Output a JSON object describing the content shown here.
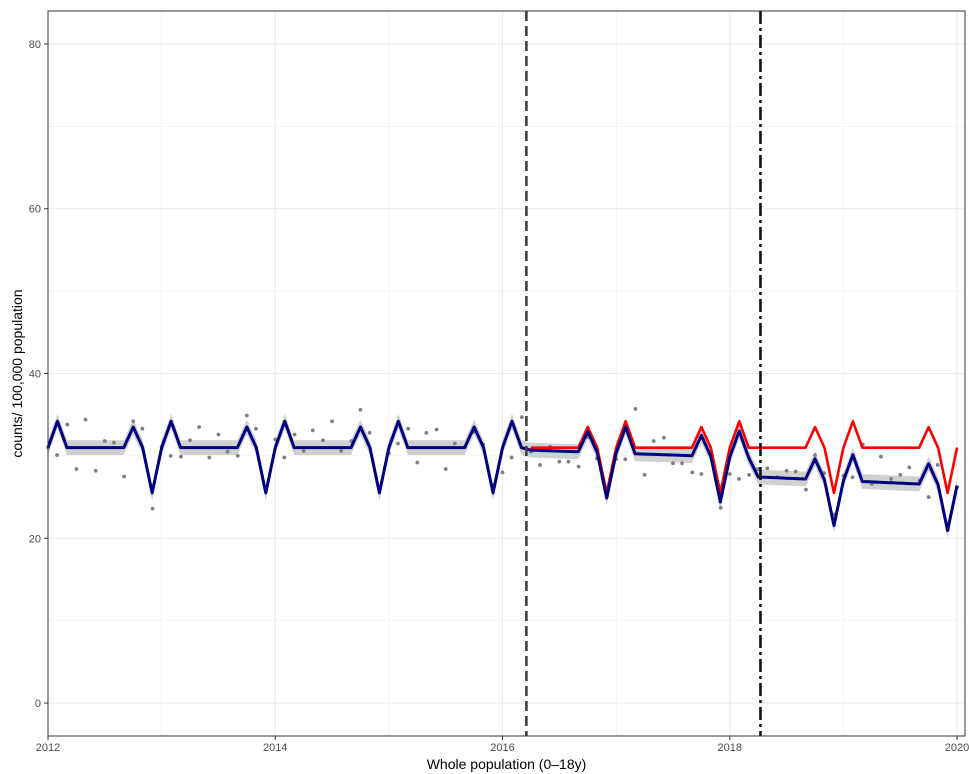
{
  "chart_data": {
    "type": "line",
    "title": "",
    "xlabel": "Whole population (0–18y)",
    "ylabel": "counts/ 100,000 population",
    "xlim": [
      2012.0,
      2020.07
    ],
    "ylim": [
      -4.0,
      84.0
    ],
    "x_ticks": [
      2012,
      2014,
      2016,
      2018,
      2020
    ],
    "x_tick_labels": [
      "2012",
      "2014",
      "2016",
      "2018",
      "2020"
    ],
    "y_ticks": [
      0,
      20,
      40,
      60,
      80
    ],
    "y_tick_labels": [
      "0",
      "20",
      "40",
      "60",
      "80"
    ],
    "grid": true,
    "legend": "none",
    "vlines": [
      {
        "x": 2016.21,
        "style": "dashed",
        "color": "#404040"
      },
      {
        "x": 2018.27,
        "style": "dashdot",
        "color": "#111111"
      }
    ],
    "colors": {
      "fitted": "#000080",
      "counterfactual": "#ff0000",
      "observed": "#808080",
      "band": "#c8c8c8"
    },
    "months": 97,
    "seasonal_pattern": [
      31.0,
      34.2,
      31.0,
      31.0,
      31.0,
      31.0,
      31.0,
      31.0,
      31.0,
      33.5,
      31.0,
      25.5
    ],
    "fitted": {
      "pre": {
        "base": 0.0,
        "slope": 0.0
      },
      "post1": {
        "start": 51,
        "drop": -0.3,
        "slope": -0.04
      },
      "post2": {
        "start": 75,
        "drop": -2.3,
        "slope": -0.01
      }
    },
    "band_halfwidth": 0.9,
    "observed_points": [
      [
        2012.0,
        31.0
      ],
      [
        2012.08,
        30.1
      ],
      [
        2012.17,
        33.8
      ],
      [
        2012.25,
        28.4
      ],
      [
        2012.33,
        34.4
      ],
      [
        2012.42,
        28.2
      ],
      [
        2012.5,
        31.8
      ],
      [
        2012.58,
        31.6
      ],
      [
        2012.67,
        27.5
      ],
      [
        2012.75,
        34.2
      ],
      [
        2012.83,
        33.3
      ],
      [
        2012.92,
        23.6
      ],
      [
        2013.0,
        31.1
      ],
      [
        2013.08,
        30.0
      ],
      [
        2013.17,
        29.9
      ],
      [
        2013.25,
        31.9
      ],
      [
        2013.33,
        33.5
      ],
      [
        2013.42,
        29.8
      ],
      [
        2013.5,
        32.6
      ],
      [
        2013.58,
        30.5
      ],
      [
        2013.67,
        30.0
      ],
      [
        2013.75,
        34.9
      ],
      [
        2013.83,
        33.3
      ],
      [
        2013.92,
        26.3
      ],
      [
        2014.0,
        32.0
      ],
      [
        2014.08,
        29.8
      ],
      [
        2014.17,
        32.6
      ],
      [
        2014.25,
        30.6
      ],
      [
        2014.33,
        33.1
      ],
      [
        2014.42,
        31.9
      ],
      [
        2014.5,
        34.2
      ],
      [
        2014.58,
        30.6
      ],
      [
        2014.67,
        31.8
      ],
      [
        2014.75,
        35.6
      ],
      [
        2014.83,
        32.8
      ],
      [
        2014.92,
        26.1
      ],
      [
        2015.0,
        30.3
      ],
      [
        2015.08,
        31.5
      ],
      [
        2015.17,
        33.3
      ],
      [
        2015.25,
        29.2
      ],
      [
        2015.33,
        32.8
      ],
      [
        2015.42,
        33.2
      ],
      [
        2015.5,
        28.4
      ],
      [
        2015.58,
        31.5
      ],
      [
        2015.67,
        31.1
      ],
      [
        2015.75,
        32.9
      ],
      [
        2015.83,
        31.4
      ],
      [
        2015.92,
        26.5
      ],
      [
        2016.0,
        28.0
      ],
      [
        2016.08,
        29.8
      ],
      [
        2016.17,
        34.7
      ],
      [
        2016.25,
        30.5
      ],
      [
        2016.33,
        28.9
      ],
      [
        2016.42,
        31.1
      ],
      [
        2016.5,
        29.3
      ],
      [
        2016.58,
        29.3
      ],
      [
        2016.67,
        28.7
      ],
      [
        2016.75,
        32.3
      ],
      [
        2016.83,
        29.7
      ],
      [
        2016.92,
        25.1
      ],
      [
        2017.0,
        29.6
      ],
      [
        2017.08,
        29.6
      ],
      [
        2017.17,
        35.7
      ],
      [
        2017.25,
        27.7
      ],
      [
        2017.33,
        31.8
      ],
      [
        2017.42,
        32.2
      ],
      [
        2017.5,
        29.1
      ],
      [
        2017.58,
        29.1
      ],
      [
        2017.67,
        28.0
      ],
      [
        2017.75,
        27.8
      ],
      [
        2017.83,
        30.4
      ],
      [
        2017.92,
        23.7
      ],
      [
        2018.0,
        27.8
      ],
      [
        2018.08,
        27.2
      ],
      [
        2018.17,
        27.7
      ],
      [
        2018.25,
        28.4
      ],
      [
        2018.33,
        28.5
      ],
      [
        2018.42,
        27.4
      ],
      [
        2018.5,
        28.2
      ],
      [
        2018.58,
        28.1
      ],
      [
        2018.67,
        25.9
      ],
      [
        2018.75,
        30.1
      ],
      [
        2018.83,
        27.9
      ],
      [
        2018.92,
        22.9
      ],
      [
        2019.0,
        27.6
      ],
      [
        2019.08,
        27.4
      ],
      [
        2019.17,
        31.4
      ],
      [
        2019.25,
        26.6
      ],
      [
        2019.33,
        29.9
      ],
      [
        2019.42,
        27.2
      ],
      [
        2019.5,
        27.7
      ],
      [
        2019.58,
        28.6
      ],
      [
        2019.67,
        27.0
      ],
      [
        2019.75,
        25.0
      ],
      [
        2019.83,
        28.9
      ],
      [
        2019.92,
        21.1
      ],
      [
        2020.0,
        26.2
      ]
    ]
  }
}
